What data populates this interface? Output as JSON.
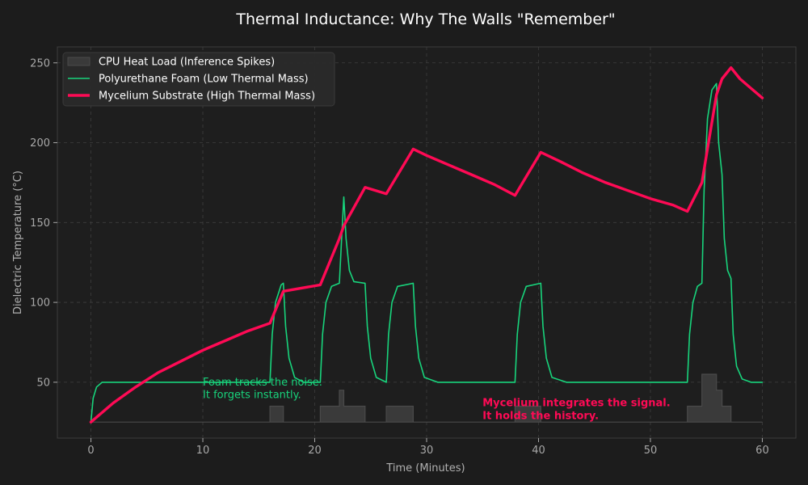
{
  "chart_data": {
    "type": "line",
    "title": "Thermal Inductance: Why The Walls \"Remember\"",
    "xlabel": "Time (Minutes)",
    "ylabel": "Dielectric Temperature (°C)",
    "xlim": [
      -3,
      63
    ],
    "ylim": [
      15,
      260
    ],
    "xticks": [
      0,
      10,
      20,
      30,
      40,
      50,
      60
    ],
    "yticks": [
      50,
      100,
      150,
      200,
      250
    ],
    "grid": true,
    "legend_position": "top-left",
    "series": [
      {
        "name": "CPU Heat Load (Inference Spikes)",
        "kind": "step-area",
        "color": "#3a3a3a",
        "x": [
          0,
          16,
          16,
          17.2,
          17.2,
          20.5,
          20.5,
          22.2,
          22.2,
          22.6,
          22.6,
          24.5,
          24.5,
          26.4,
          26.4,
          28.8,
          28.8,
          37.9,
          37.9,
          40.2,
          40.2,
          53.3,
          53.3,
          54.6,
          54.6,
          55.9,
          55.9,
          56.4,
          56.4,
          57.2,
          57.2,
          60
        ],
        "values": [
          25,
          25,
          35,
          35,
          25,
          25,
          35,
          35,
          45,
          45,
          35,
          35,
          25,
          25,
          35,
          35,
          25,
          25,
          35,
          35,
          25,
          25,
          35,
          35,
          55,
          55,
          45,
          45,
          35,
          35,
          25,
          25
        ]
      },
      {
        "name": "Polyurethane Foam (Low Thermal Mass)",
        "kind": "line",
        "color": "#18d47c",
        "x": [
          0,
          0.2,
          0.5,
          1,
          2,
          16,
          16.2,
          16.5,
          17,
          17.2,
          17.4,
          17.7,
          18.2,
          19,
          20.5,
          20.7,
          21,
          21.5,
          22.2,
          22.4,
          22.6,
          22.8,
          23.1,
          23.5,
          24.5,
          24.7,
          25,
          25.5,
          26.4,
          26.6,
          26.9,
          27.4,
          28.8,
          29,
          29.3,
          29.8,
          31,
          37.9,
          38.1,
          38.4,
          38.9,
          40.2,
          40.4,
          40.7,
          41.2,
          42.5,
          53.3,
          53.5,
          53.8,
          54.2,
          54.6,
          54.8,
          55.1,
          55.5,
          55.9,
          56.1,
          56.4,
          56.6,
          56.9,
          57.2,
          57.4,
          57.7,
          58.2,
          59,
          60
        ],
        "values": [
          25,
          40,
          47,
          50,
          50,
          50,
          80,
          100,
          111,
          112,
          85,
          65,
          53,
          50,
          50,
          80,
          100,
          110,
          112,
          140,
          166,
          140,
          120,
          113,
          112,
          85,
          65,
          53,
          50,
          80,
          100,
          110,
          112,
          85,
          65,
          53,
          50,
          50,
          80,
          100,
          110,
          112,
          85,
          65,
          53,
          50,
          50,
          80,
          100,
          110,
          112,
          170,
          215,
          233,
          237,
          200,
          180,
          140,
          120,
          115,
          80,
          60,
          52,
          50,
          50
        ]
      },
      {
        "name": "Mycelium Substrate (High Thermal Mass)",
        "kind": "line",
        "color": "#ff0a55",
        "x": [
          0,
          2,
          4,
          6,
          8,
          10,
          12,
          14,
          16,
          17.2,
          20.5,
          22.2,
          22.6,
          24.5,
          26.4,
          28.8,
          30,
          32,
          34,
          36,
          37.9,
          40.2,
          42,
          44,
          46,
          48,
          50,
          52,
          53.3,
          54.6,
          55.9,
          56.4,
          57.2,
          58,
          59,
          60
        ],
        "values": [
          25,
          37,
          47,
          56,
          63,
          70,
          76,
          82,
          87,
          107,
          111,
          140,
          148,
          172,
          168,
          196,
          192,
          186,
          180,
          174,
          167,
          194,
          188,
          181,
          175,
          170,
          165,
          161,
          157,
          175,
          230,
          240,
          247,
          240,
          234,
          228
        ]
      }
    ],
    "annotations": [
      {
        "text": "Foam tracks the noise.",
        "x": 10,
        "y": 48,
        "color": "#18d47c",
        "bold": false
      },
      {
        "text": "It forgets instantly.",
        "x": 10,
        "y": 40,
        "color": "#18d47c",
        "bold": false
      },
      {
        "text": "Mycelium integrates the signal.",
        "x": 35,
        "y": 35,
        "color": "#ff0a55",
        "bold": true
      },
      {
        "text": "It holds the history.",
        "x": 35,
        "y": 27,
        "color": "#ff0a55",
        "bold": true
      }
    ]
  }
}
